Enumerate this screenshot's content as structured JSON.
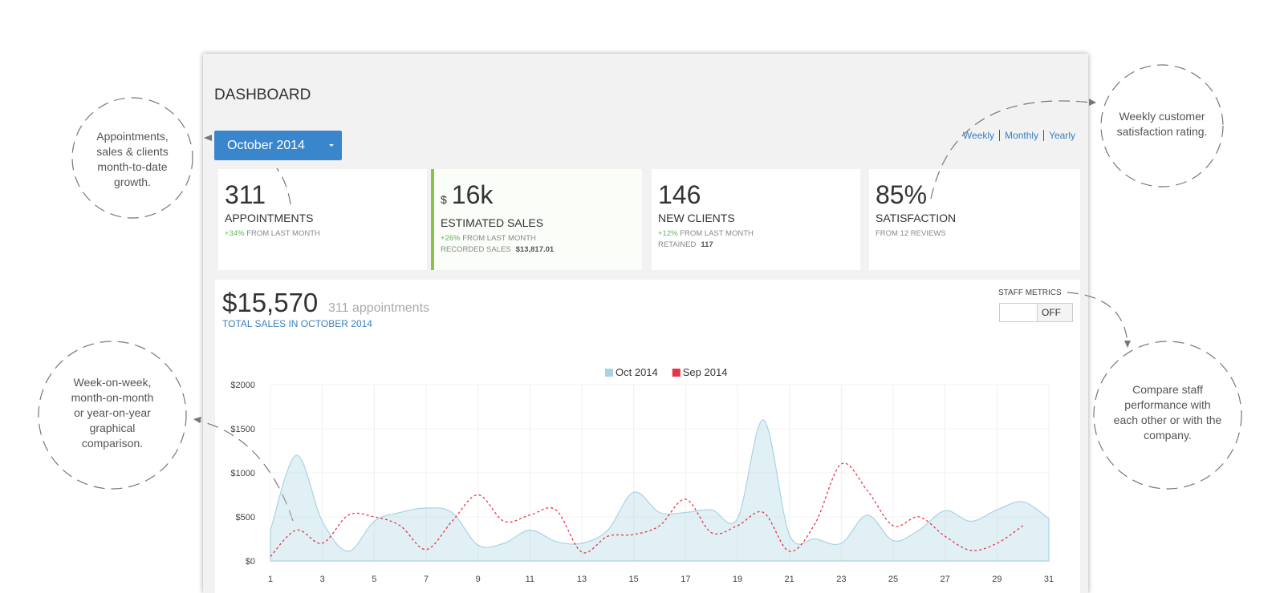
{
  "dashboard": {
    "title": "DASHBOARD",
    "month": "October 2014",
    "periods": [
      "Weekly",
      "Monthly",
      "Yearly"
    ]
  },
  "cards": [
    {
      "value": "311",
      "label": "APPOINTMENTS",
      "change": "+34%",
      "change_text": "FROM LAST MONTH"
    },
    {
      "currency": "$",
      "value": "16k",
      "label": "ESTIMATED SALES",
      "change": "+26%",
      "change_text": "FROM LAST MONTH",
      "extra_label": "RECORDED SALES",
      "extra_value": "$13,817.01"
    },
    {
      "value": "146",
      "label": "NEW CLIENTS",
      "change": "+12%",
      "change_text": "FROM LAST MONTH",
      "extra_label": "RETAINED",
      "extra_value": "117"
    },
    {
      "value": "85%",
      "label": "SATISFACTION",
      "change_text": "FROM 12 REVIEWS"
    }
  ],
  "summary": {
    "total": "$15,570",
    "appointments": "311 appointments",
    "caption": "TOTAL SALES IN OCTOBER 2014",
    "staff_label": "STAFF METRICS",
    "toggle": "OFF"
  },
  "chart_data": {
    "type": "area",
    "x": [
      1,
      2,
      3,
      4,
      5,
      6,
      7,
      8,
      9,
      10,
      11,
      12,
      13,
      14,
      15,
      16,
      17,
      18,
      19,
      20,
      21,
      22,
      23,
      24,
      25,
      26,
      27,
      28,
      29,
      30,
      31
    ],
    "series": [
      {
        "name": "Oct 2014",
        "color": "#a9d3e3",
        "values": [
          350,
          1200,
          450,
          110,
          450,
          550,
          600,
          550,
          180,
          200,
          350,
          220,
          200,
          350,
          780,
          550,
          550,
          580,
          480,
          1600,
          300,
          250,
          200,
          520,
          230,
          350,
          570,
          450,
          580,
          670,
          480
        ]
      },
      {
        "name": "Sep 2014",
        "color": "#e8344a",
        "values": [
          50,
          350,
          200,
          520,
          500,
          400,
          130,
          450,
          750,
          450,
          520,
          580,
          100,
          280,
          300,
          400,
          700,
          320,
          400,
          550,
          110,
          430,
          1100,
          800,
          400,
          500,
          280,
          120,
          200,
          400,
          null
        ]
      }
    ],
    "xlim": [
      1,
      31
    ],
    "xticks": [
      1,
      3,
      5,
      7,
      9,
      11,
      13,
      15,
      17,
      19,
      21,
      23,
      25,
      27,
      29,
      31
    ],
    "ylim": [
      0,
      2000
    ],
    "yticks": [
      {
        "value": 0,
        "label": "$0"
      },
      {
        "value": 500,
        "label": "$500"
      },
      {
        "value": 1000,
        "label": "$1000"
      },
      {
        "value": 1500,
        "label": "$1500"
      },
      {
        "value": 2000,
        "label": "$2000"
      }
    ],
    "grid": true
  },
  "annotations": [
    {
      "lines": [
        "Appointments,",
        "sales & clients",
        "month-to-date",
        "growth."
      ]
    },
    {
      "lines": [
        "Weekly customer",
        "satisfaction rating."
      ]
    },
    {
      "lines": [
        "Week-on-week,",
        "month-on-month",
        "or year-on-year",
        "graphical",
        "comparison."
      ]
    },
    {
      "lines": [
        "Compare staff",
        "performance with",
        "each other or with the",
        "company."
      ]
    }
  ]
}
